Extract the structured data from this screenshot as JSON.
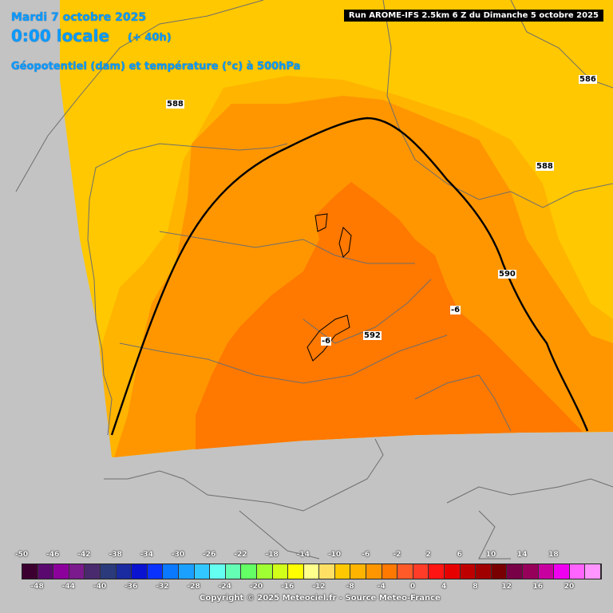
{
  "header": {
    "date": "Mardi 7 octobre 2025",
    "time": "0:00 locale",
    "lead": "(+ 40h)",
    "parameter": "Géopotentiel (dam) et température (°c) à 500hPa"
  },
  "run_info": "Run AROME-IFS 2.5km 6 Z du Dimanche 5 octobre 2025",
  "copyright": "Copyright © 2025 Meteociel.fr - Source Meteo-France",
  "contour_labels": [
    "588",
    "586",
    "588",
    "590",
    "592",
    "-6",
    "-6"
  ],
  "legend": {
    "ticks_top": [
      "-50",
      "-46",
      "-42",
      "-38",
      "-34",
      "-30",
      "-26",
      "-22",
      "-18",
      "-14",
      "-10",
      "-6",
      "-2",
      "2",
      "6",
      "10",
      "14",
      "18"
    ],
    "ticks_bottom": [
      "-48",
      "-44",
      "-40",
      "-36",
      "-32",
      "-28",
      "-24",
      "-20",
      "-16",
      "-12",
      "-8",
      "-4",
      "0",
      "4",
      "8",
      "12",
      "16",
      "20"
    ],
    "colors": [
      "#3c0030",
      "#5a0a6e",
      "#8c009c",
      "#7a1a8c",
      "#4a2a6e",
      "#2a3a7a",
      "#1a2aa0",
      "#0a14d0",
      "#0a32ff",
      "#0a78ff",
      "#1aa0ff",
      "#32c8ff",
      "#64fff0",
      "#64ffb4",
      "#64ff64",
      "#a0ff32",
      "#d2ff1a",
      "#ffff00",
      "#ffff8c",
      "#ffe064",
      "#ffc800",
      "#ffb400",
      "#ff9600",
      "#ff7800",
      "#ff5a28",
      "#ff3c28",
      "#ff1414",
      "#e60000",
      "#be0000",
      "#a00000",
      "#780000",
      "#780046",
      "#96005a",
      "#c800a0",
      "#f000f0",
      "#ff64ff",
      "#ff96ff"
    ],
    "background": "#c3c3c3"
  },
  "palette": {
    "temp_minus10": "#ffc800",
    "temp_minus8": "#ffb400",
    "temp_minus6": "#ff9600",
    "temp_minus4": "#ff7800",
    "outside_domain": "#c3c3c3",
    "header_text": "#0a9bff"
  }
}
